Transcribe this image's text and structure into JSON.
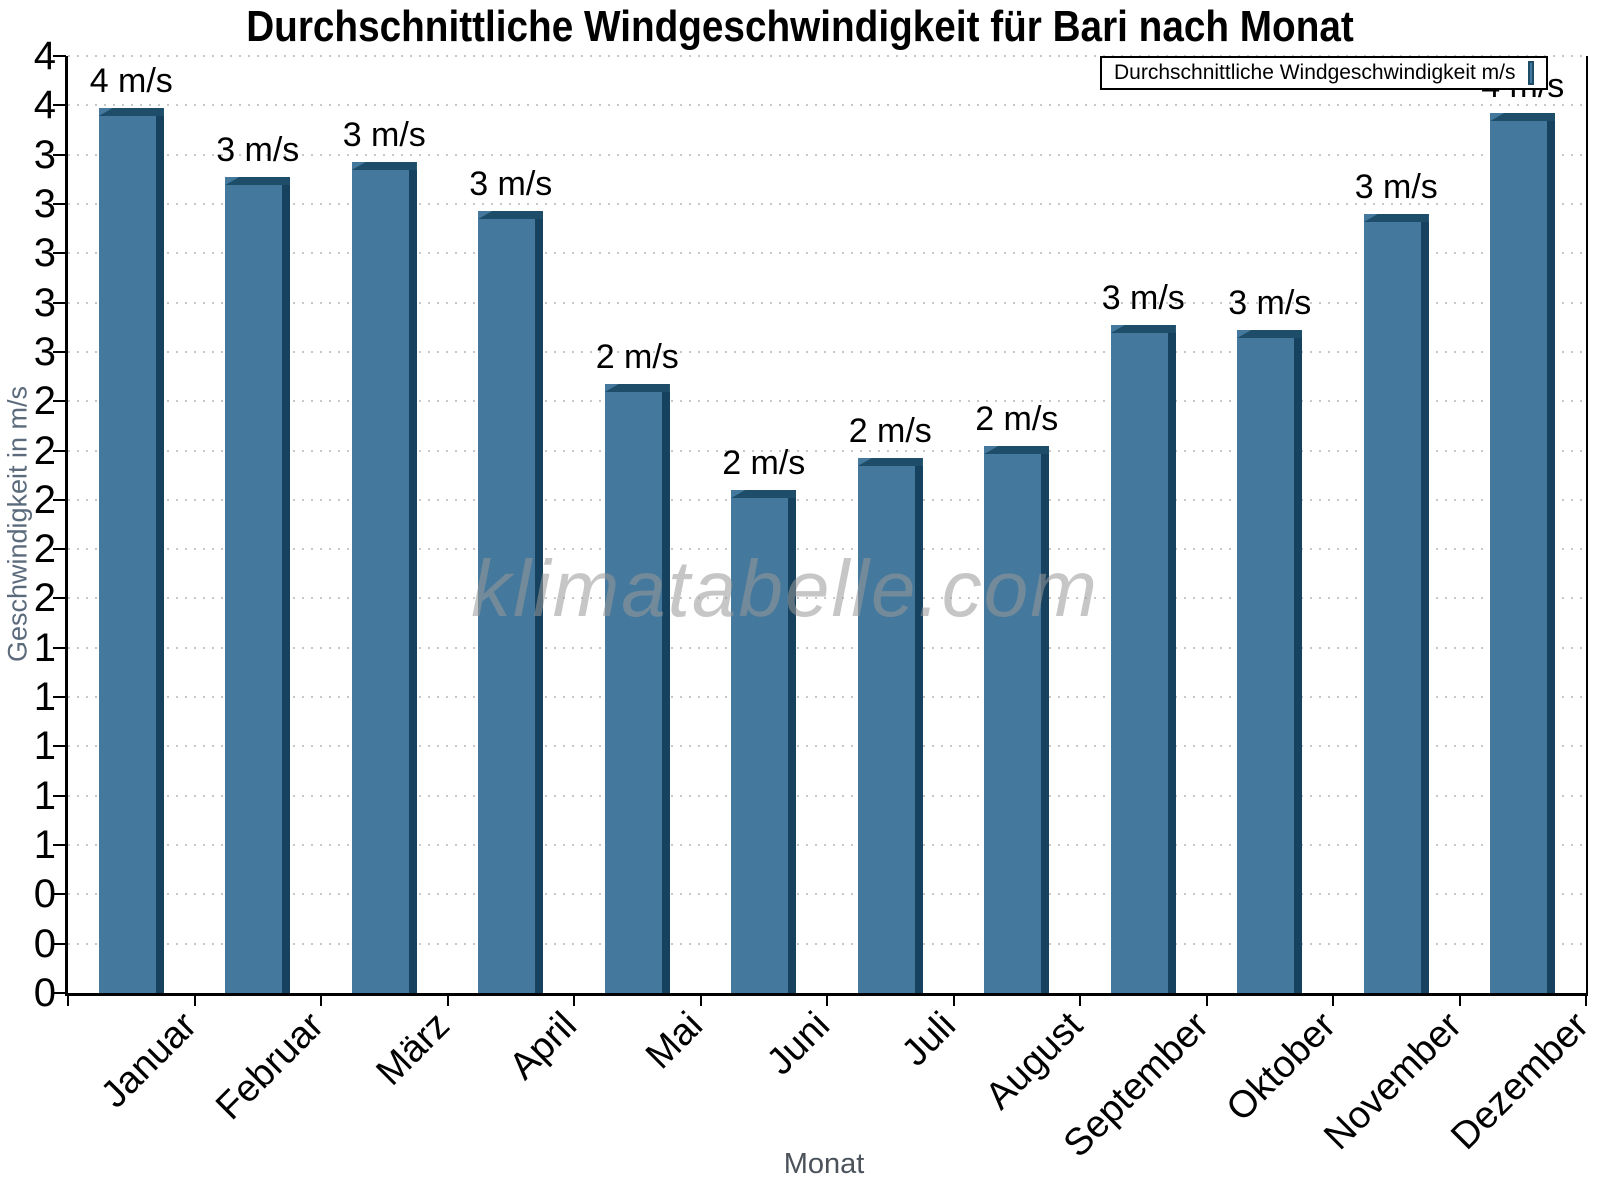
{
  "watermark": "klimatabelle.com",
  "chart_data": {
    "type": "bar",
    "title": "Durchschnittliche Windgeschwindigkeit für Bari nach Monat",
    "xlabel": "Monat",
    "ylabel": "Geschwindigkeit in m/s",
    "categories": [
      "Januar",
      "Februar",
      "März",
      "April",
      "Mai",
      "Juni",
      "Juli",
      "August",
      "September",
      "Oktober",
      "November",
      "Dezember"
    ],
    "series": [
      {
        "name": "Durchschnittliche Windgeschwindigkeit m/s",
        "values": [
          3.59,
          3.31,
          3.37,
          3.17,
          2.47,
          2.04,
          2.17,
          2.22,
          2.71,
          2.69,
          3.16,
          3.57
        ],
        "bar_labels": [
          "4 m/s",
          "3 m/s",
          "3 m/s",
          "3 m/s",
          "2 m/s",
          "2 m/s",
          "2 m/s",
          "2 m/s",
          "3 m/s",
          "3 m/s",
          "3 m/s",
          "4 m/s"
        ]
      }
    ],
    "ylim": [
      0,
      3.8
    ],
    "y_tick_step": 0.2,
    "y_tick_labels_top_to_bottom": [
      "4",
      "4",
      "3",
      "3",
      "3",
      "3",
      "3",
      "2",
      "2",
      "2",
      "2",
      "2",
      "1",
      "1",
      "1",
      "1",
      "1",
      "0",
      "0",
      "0"
    ],
    "grid": "horizontal dotted",
    "legend_position": "top-right"
  },
  "colors": {
    "bar_fill": "#44789c",
    "bar_top_bevel": "#1d4d68",
    "bar_right_side": "#16425f",
    "grid": "#c8c8c8",
    "axis": "#000000",
    "ylabel_color": "#5b6b7c",
    "xlabel_color": "#4b525a",
    "watermark_color": "#999999",
    "background": "#ffffff"
  }
}
